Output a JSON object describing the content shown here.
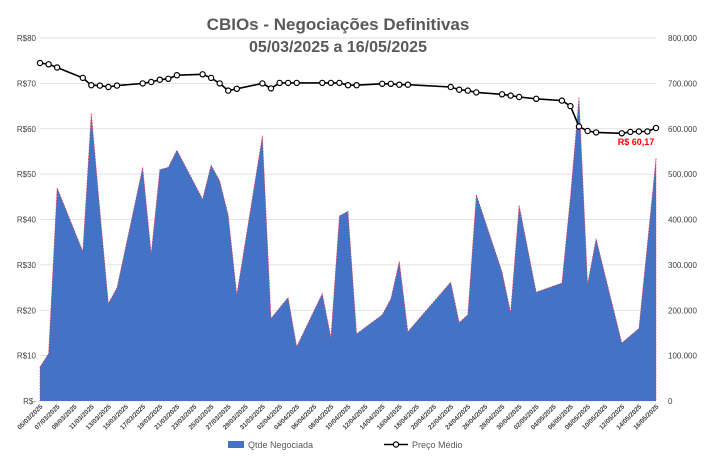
{
  "chart_data": {
    "type": "area",
    "title": "CBIOs - Negociações Definitivas",
    "subtitle": "05/03/2025 a 16/05/2025",
    "left_axis": {
      "ylim": [
        0,
        80
      ],
      "ticks": [
        0,
        10,
        20,
        30,
        40,
        50,
        60,
        70,
        80
      ],
      "tick_labels": [
        "R$-",
        "R$10",
        "R$20",
        "R$30",
        "R$40",
        "R$50",
        "R$60",
        "R$70",
        "R$80"
      ]
    },
    "right_axis": {
      "ylim": [
        0,
        800000
      ],
      "ticks": [
        0,
        100000,
        200000,
        300000,
        400000,
        500000,
        600000,
        700000,
        800000
      ],
      "tick_labels": [
        "0",
        "100.000",
        "200.000",
        "300.000",
        "400.000",
        "500.000",
        "600.000",
        "700.000",
        "800.000"
      ]
    },
    "x_range": [
      "2025-03-05",
      "2025-05-16"
    ],
    "x_tick_labels": [
      "05/03/2025",
      "07/03/2025",
      "09/03/2025",
      "11/03/2025",
      "13/03/2025",
      "15/03/2025",
      "17/03/2025",
      "19/03/2025",
      "21/03/2025",
      "23/03/2025",
      "25/03/2025",
      "27/03/2025",
      "29/03/2025",
      "31/03/2025",
      "02/04/2025",
      "04/04/2025",
      "06/04/2025",
      "08/04/2025",
      "10/04/2025",
      "12/04/2025",
      "14/04/2025",
      "16/04/2025",
      "18/04/2025",
      "20/04/2025",
      "22/04/2025",
      "24/04/2025",
      "26/04/2025",
      "28/04/2025",
      "30/04/2025",
      "02/05/2025",
      "04/05/2025",
      "06/05/2025",
      "08/05/2025",
      "10/05/2025",
      "12/05/2025",
      "14/05/2025",
      "16/05/2025"
    ],
    "series": [
      {
        "name": "Qtde Negociada",
        "kind": "area",
        "axis": "right",
        "color": "#4472c4",
        "edge_color": "#ff3333",
        "points": [
          [
            "2025-03-05",
            75000
          ],
          [
            "2025-03-06",
            105000
          ],
          [
            "2025-03-07",
            470000
          ],
          [
            "2025-03-10",
            330000
          ],
          [
            "2025-03-11",
            635000
          ],
          [
            "2025-03-12",
            420000
          ],
          [
            "2025-03-13",
            215000
          ],
          [
            "2025-03-14",
            250000
          ],
          [
            "2025-03-17",
            515000
          ],
          [
            "2025-03-18",
            325000
          ],
          [
            "2025-03-19",
            510000
          ],
          [
            "2025-03-20",
            515000
          ],
          [
            "2025-03-21",
            553000
          ],
          [
            "2025-03-24",
            445000
          ],
          [
            "2025-03-25",
            520000
          ],
          [
            "2025-03-26",
            485000
          ],
          [
            "2025-03-27",
            410000
          ],
          [
            "2025-03-28",
            235000
          ],
          [
            "2025-03-31",
            585000
          ],
          [
            "2025-04-01",
            182000
          ],
          [
            "2025-04-03",
            228000
          ],
          [
            "2025-04-04",
            120000
          ],
          [
            "2025-04-07",
            237000
          ],
          [
            "2025-04-08",
            140000
          ],
          [
            "2025-04-09",
            408000
          ],
          [
            "2025-04-10",
            418000
          ],
          [
            "2025-04-11",
            148000
          ],
          [
            "2025-04-14",
            190000
          ],
          [
            "2025-04-15",
            225000
          ],
          [
            "2025-04-16",
            308000
          ],
          [
            "2025-04-17",
            153000
          ],
          [
            "2025-04-22",
            262000
          ],
          [
            "2025-04-23",
            173000
          ],
          [
            "2025-04-24",
            190000
          ],
          [
            "2025-04-25",
            455000
          ],
          [
            "2025-04-28",
            285000
          ],
          [
            "2025-04-29",
            195000
          ],
          [
            "2025-04-30",
            432000
          ],
          [
            "2025-05-02",
            240000
          ],
          [
            "2025-05-05",
            260000
          ],
          [
            "2025-05-06",
            450000
          ],
          [
            "2025-05-07",
            670000
          ],
          [
            "2025-05-08",
            258000
          ],
          [
            "2025-05-09",
            358000
          ],
          [
            "2025-05-12",
            128000
          ],
          [
            "2025-05-14",
            160000
          ],
          [
            "2025-05-16",
            535000
          ]
        ]
      },
      {
        "name": "Preço Médio",
        "kind": "line",
        "axis": "left",
        "color": "#000000",
        "points": [
          [
            "2025-03-05",
            74.5
          ],
          [
            "2025-03-06",
            74.2
          ],
          [
            "2025-03-07",
            73.5
          ],
          [
            "2025-03-10",
            71.2
          ],
          [
            "2025-03-11",
            69.6
          ],
          [
            "2025-03-12",
            69.5
          ],
          [
            "2025-03-13",
            69.2
          ],
          [
            "2025-03-14",
            69.5
          ],
          [
            "2025-03-17",
            70.0
          ],
          [
            "2025-03-18",
            70.3
          ],
          [
            "2025-03-19",
            70.8
          ],
          [
            "2025-03-20",
            71.0
          ],
          [
            "2025-03-21",
            71.8
          ],
          [
            "2025-03-24",
            72.0
          ],
          [
            "2025-03-25",
            71.2
          ],
          [
            "2025-03-26",
            70.0
          ],
          [
            "2025-03-27",
            68.4
          ],
          [
            "2025-03-28",
            68.8
          ],
          [
            "2025-03-31",
            70.0
          ],
          [
            "2025-04-01",
            68.9
          ],
          [
            "2025-04-02",
            70.1
          ],
          [
            "2025-04-03",
            70.1
          ],
          [
            "2025-04-04",
            70.1
          ],
          [
            "2025-04-07",
            70.1
          ],
          [
            "2025-04-08",
            70.1
          ],
          [
            "2025-04-09",
            70.1
          ],
          [
            "2025-04-10",
            69.6
          ],
          [
            "2025-04-11",
            69.6
          ],
          [
            "2025-04-14",
            69.9
          ],
          [
            "2025-04-15",
            69.9
          ],
          [
            "2025-04-16",
            69.7
          ],
          [
            "2025-04-17",
            69.7
          ],
          [
            "2025-04-22",
            69.2
          ],
          [
            "2025-04-23",
            68.6
          ],
          [
            "2025-04-24",
            68.4
          ],
          [
            "2025-04-25",
            68.0
          ],
          [
            "2025-04-28",
            67.6
          ],
          [
            "2025-04-29",
            67.3
          ],
          [
            "2025-04-30",
            67.0
          ],
          [
            "2025-05-02",
            66.6
          ],
          [
            "2025-05-05",
            66.2
          ],
          [
            "2025-05-06",
            65.0
          ],
          [
            "2025-05-07",
            60.5
          ],
          [
            "2025-05-08",
            59.5
          ],
          [
            "2025-05-09",
            59.2
          ],
          [
            "2025-05-12",
            59.0
          ],
          [
            "2025-05-13",
            59.3
          ],
          [
            "2025-05-14",
            59.4
          ],
          [
            "2025-05-15",
            59.4
          ],
          [
            "2025-05-16",
            60.17
          ]
        ]
      }
    ],
    "annotation": {
      "text": "R$ 60,17",
      "date": "2025-05-16",
      "value": 60.17,
      "color": "#ff0000"
    },
    "legend": {
      "placement": "bottom",
      "items": [
        "Qtde Negociada",
        "Preço Médio"
      ]
    },
    "grid": true
  }
}
